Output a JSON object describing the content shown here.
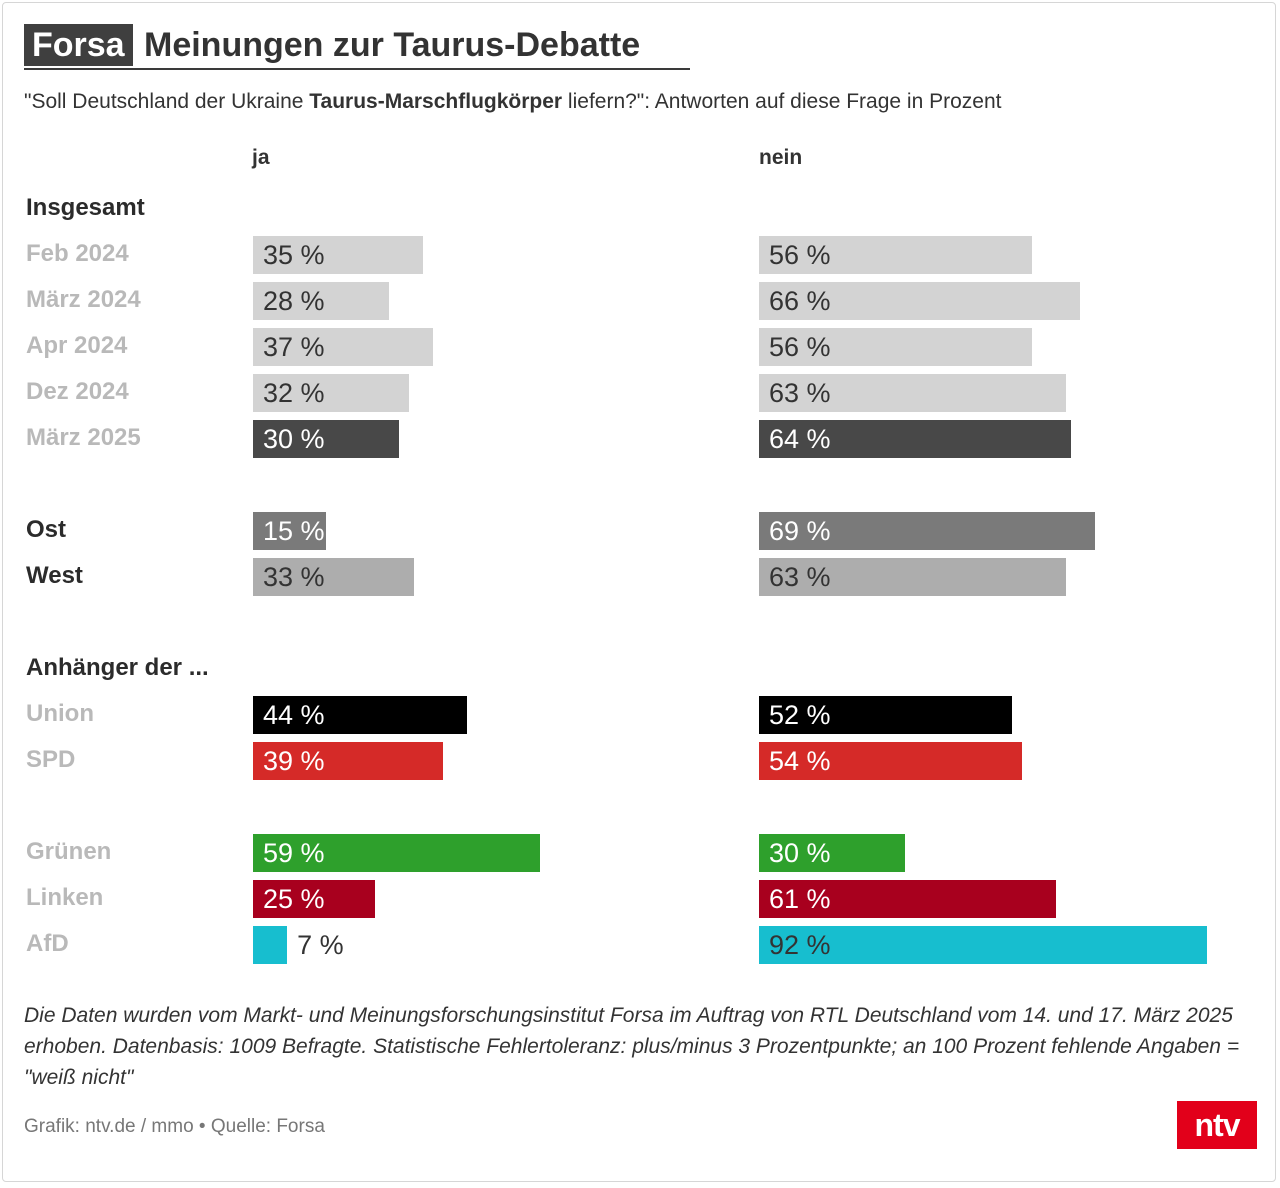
{
  "header": {
    "brand": "Forsa",
    "title": "Meinungen zur Taurus-Debatte",
    "subtitle_pre": "\"Soll Deutschland der Ukraine ",
    "subtitle_bold": "Taurus-Marschflugkörper",
    "subtitle_post": " liefern?\": Antworten auf diese Frage in Prozent"
  },
  "chart_data": {
    "type": "bar",
    "orientation": "horizontal",
    "value_suffix": " %",
    "columns": [
      {
        "key": "ja",
        "label": "ja"
      },
      {
        "key": "nein",
        "label": "nein"
      }
    ],
    "sections": [
      {
        "title": "Insgesamt",
        "rows": [
          {
            "label": "Feb 2024",
            "ja": 35,
            "nein": 56,
            "color": "#d3d3d3",
            "text": "#333333",
            "label_dark": false
          },
          {
            "label": "März 2024",
            "ja": 28,
            "nein": 66,
            "color": "#d3d3d3",
            "text": "#333333",
            "label_dark": false
          },
          {
            "label": "Apr 2024",
            "ja": 37,
            "nein": 56,
            "color": "#d3d3d3",
            "text": "#333333",
            "label_dark": false
          },
          {
            "label": "Dez 2024",
            "ja": 32,
            "nein": 63,
            "color": "#d3d3d3",
            "text": "#333333",
            "label_dark": false
          },
          {
            "label": "März 2025",
            "ja": 30,
            "nein": 64,
            "color": "#484848",
            "text": "#ffffff",
            "label_dark": false
          }
        ]
      },
      {
        "title": "",
        "rows": [
          {
            "label": "Ost",
            "ja": 15,
            "nein": 69,
            "color": "#7a7a7a",
            "text": "#ffffff",
            "label_dark": true
          },
          {
            "label": "West",
            "ja": 33,
            "nein": 63,
            "color": "#adadad",
            "text": "#333333",
            "label_dark": true
          }
        ]
      },
      {
        "title": "Anhänger der ...",
        "rows": [
          {
            "label": "Union",
            "ja": 44,
            "nein": 52,
            "color": "#000000",
            "text": "#ffffff",
            "label_dark": false
          },
          {
            "label": "SPD",
            "ja": 39,
            "nein": 54,
            "color": "#d52a28",
            "text": "#ffffff",
            "label_dark": false
          }
        ]
      },
      {
        "title": "",
        "rows": [
          {
            "label": "Grünen",
            "ja": 59,
            "nein": 30,
            "color": "#2ea02c",
            "text": "#ffffff",
            "label_dark": false
          },
          {
            "label": "Linken",
            "ja": 25,
            "nein": 61,
            "color": "#a8001e",
            "text": "#ffffff",
            "label_dark": false
          },
          {
            "label": "AfD",
            "ja": 7,
            "nein": 92,
            "color": "#17becf",
            "text": "#333333",
            "label_dark": false
          }
        ]
      }
    ]
  },
  "footer": {
    "note": "Die Daten wurden vom Markt- und Meinungsforschungsinstitut Forsa im Auftrag von RTL Deutschland vom 14. und 17. März 2025 erhoben. Datenbasis: 1009 Befragte. Statistische Fehlertoleranz: plus/minus 3 Prozentpunkte; an 100 Prozent fehlende Angaben = \"weiß nicht\"",
    "credit": "Grafik: ntv.de / mmo • Quelle: Forsa",
    "logo": "ntv"
  }
}
